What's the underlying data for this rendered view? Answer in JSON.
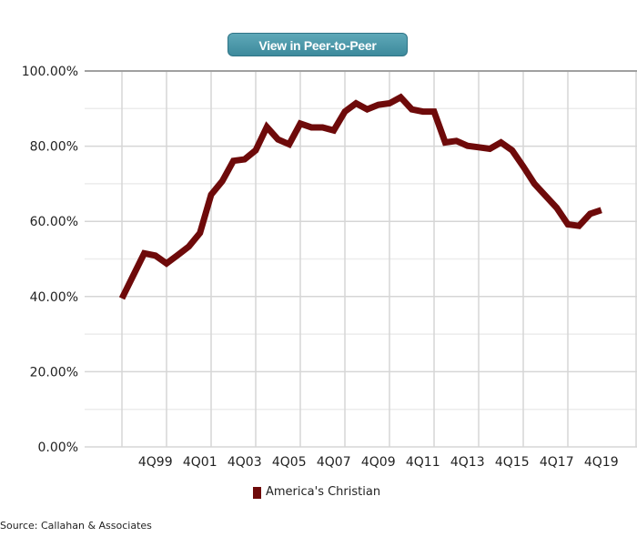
{
  "button": {
    "label": "View in Peer-to-Peer"
  },
  "source": "Source: Callahan & Associates",
  "colors": {
    "series": "#6e0a0a",
    "button": "#4796a8"
  },
  "chart_data": {
    "type": "line",
    "title": "",
    "xlabel": "",
    "ylabel": "",
    "ylim": [
      0,
      100
    ],
    "yticks": [
      "0.00%",
      "20.00%",
      "40.00%",
      "60.00%",
      "80.00%",
      "100.00%"
    ],
    "xtick_labels": [
      "4Q99",
      "4Q01",
      "4Q03",
      "4Q05",
      "4Q07",
      "4Q09",
      "4Q11",
      "4Q13",
      "4Q15",
      "4Q17",
      "4Q19"
    ],
    "x": [
      "2Q98",
      "4Q98",
      "2Q99",
      "4Q99",
      "2Q00",
      "4Q00",
      "2Q01",
      "4Q01",
      "2Q02",
      "4Q02",
      "2Q03",
      "4Q03",
      "2Q04",
      "4Q04",
      "2Q05",
      "4Q05",
      "2Q06",
      "4Q06",
      "2Q07",
      "4Q07",
      "2Q08",
      "4Q08",
      "2Q09",
      "4Q09",
      "2Q10",
      "4Q10",
      "2Q11",
      "4Q11",
      "2Q12",
      "4Q12",
      "2Q13",
      "4Q13",
      "2Q14",
      "4Q14",
      "2Q15",
      "4Q15",
      "2Q16",
      "4Q16",
      "2Q17",
      "4Q17",
      "2Q18",
      "4Q18",
      "2Q19",
      "4Q19"
    ],
    "grid": true,
    "legend": "bottom",
    "series": [
      {
        "name": "America's Christian",
        "values": [
          39.5,
          45.5,
          51.5,
          50.9,
          48.8,
          51.0,
          53.3,
          56.9,
          67.1,
          70.7,
          76.1,
          76.5,
          78.9,
          85.1,
          81.8,
          80.5,
          86.0,
          85.0,
          85.0,
          84.2,
          89.2,
          91.4,
          89.8,
          91.0,
          91.4,
          93.0,
          89.8,
          89.2,
          89.2,
          81.0,
          81.4,
          80.1,
          79.7,
          79.3,
          81.0,
          78.9,
          74.6,
          70.0,
          66.8,
          63.6,
          59.2,
          58.8,
          62.0,
          63.0
        ]
      }
    ]
  }
}
